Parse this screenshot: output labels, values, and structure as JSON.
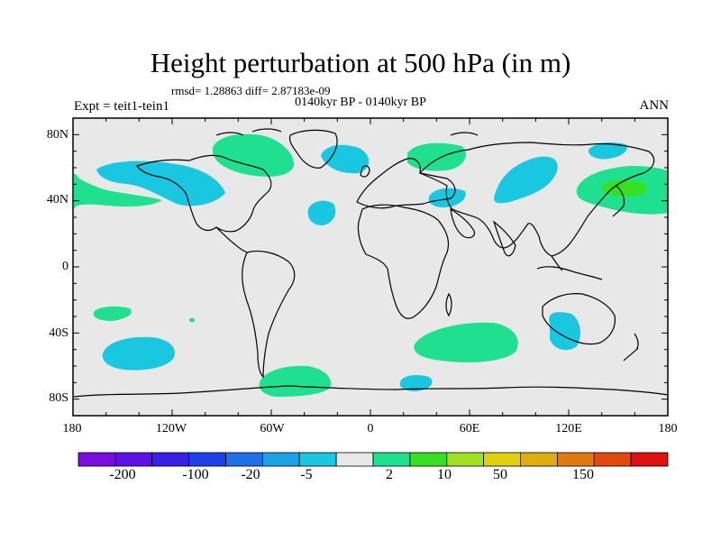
{
  "title": "Height perturbation at 500 hPa (in m)",
  "stats": "rmsd= 1.28863 diff= 2.87183e-09",
  "subtitle": "0140kyr BP - 0140kyr BP",
  "left_label": "Expt = teit1-tein1",
  "right_label": "ANN",
  "lat_labels": [
    "80N",
    "40N",
    "0",
    "40S",
    "80S"
  ],
  "lon_labels": [
    "180",
    "120W",
    "60W",
    "0",
    "60E",
    "120E",
    "180"
  ],
  "colorbar": {
    "labels": [
      "-200",
      "-100",
      "-20",
      "-5",
      "2",
      "10",
      "50",
      "150"
    ],
    "colors": [
      "#7b0be0",
      "#5e11e6",
      "#3a1fe6",
      "#1f3fe8",
      "#1f6fe6",
      "#1ba1e6",
      "#19c8e0",
      "#e8e8e8",
      "#1ee08f",
      "#36e020",
      "#a0e020",
      "#e0d010",
      "#e0ad10",
      "#e07a10",
      "#e04a10",
      "#e01010"
    ]
  },
  "map": {
    "ocean_color": "#e8e8e8",
    "negative_color": "#19c8e0",
    "positive_color": "#1ee08f",
    "strong_positive_color": "#36e020"
  }
}
